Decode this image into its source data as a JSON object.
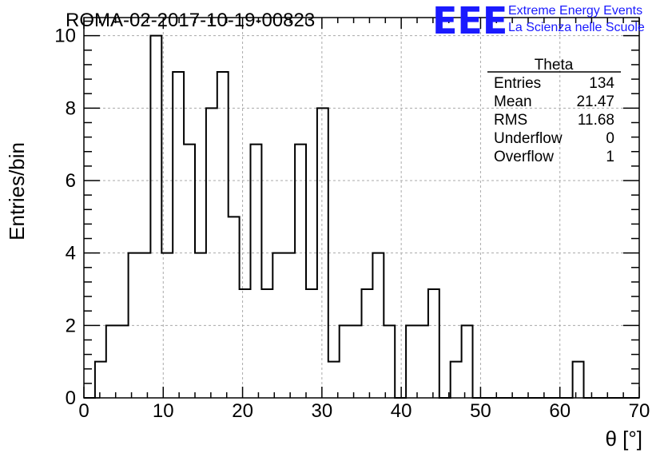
{
  "chart_data": {
    "type": "histogram",
    "title": "ROMA-02-2017-10-19-00823",
    "xlabel": "θ [°]",
    "ylabel": "Entries/bin",
    "xlim": [
      0,
      70
    ],
    "ylim": [
      0,
      10.5
    ],
    "x_ticks": [
      0,
      10,
      20,
      30,
      40,
      50,
      60,
      70
    ],
    "y_ticks": [
      0,
      2,
      4,
      6,
      8,
      10
    ],
    "grid": true,
    "bin_width": 1.4,
    "bin_start": 0,
    "values": [
      0,
      1,
      2,
      2,
      4,
      4,
      10,
      4,
      9,
      7,
      4,
      8,
      9,
      5,
      3,
      7,
      3,
      4,
      4,
      7,
      3,
      8,
      1,
      2,
      2,
      3,
      4,
      2,
      0,
      2,
      2,
      3,
      0,
      1,
      2,
      0,
      0,
      0,
      0,
      0,
      0,
      0,
      0,
      0,
      1,
      0,
      0,
      0,
      0,
      0
    ],
    "stats_box": {
      "title": "Theta",
      "rows": [
        {
          "label": "Entries",
          "value": "134"
        },
        {
          "label": "Mean",
          "value": "21.47"
        },
        {
          "label": "RMS",
          "value": "11.68"
        },
        {
          "label": "Underflow",
          "value": "0"
        },
        {
          "label": "Overflow",
          "value": "1"
        }
      ]
    }
  },
  "branding": {
    "logo": "EEE",
    "line1": "Extreme Energy Events",
    "line2": "La Scienza nelle Scuole",
    "color": "#1a1aff"
  }
}
